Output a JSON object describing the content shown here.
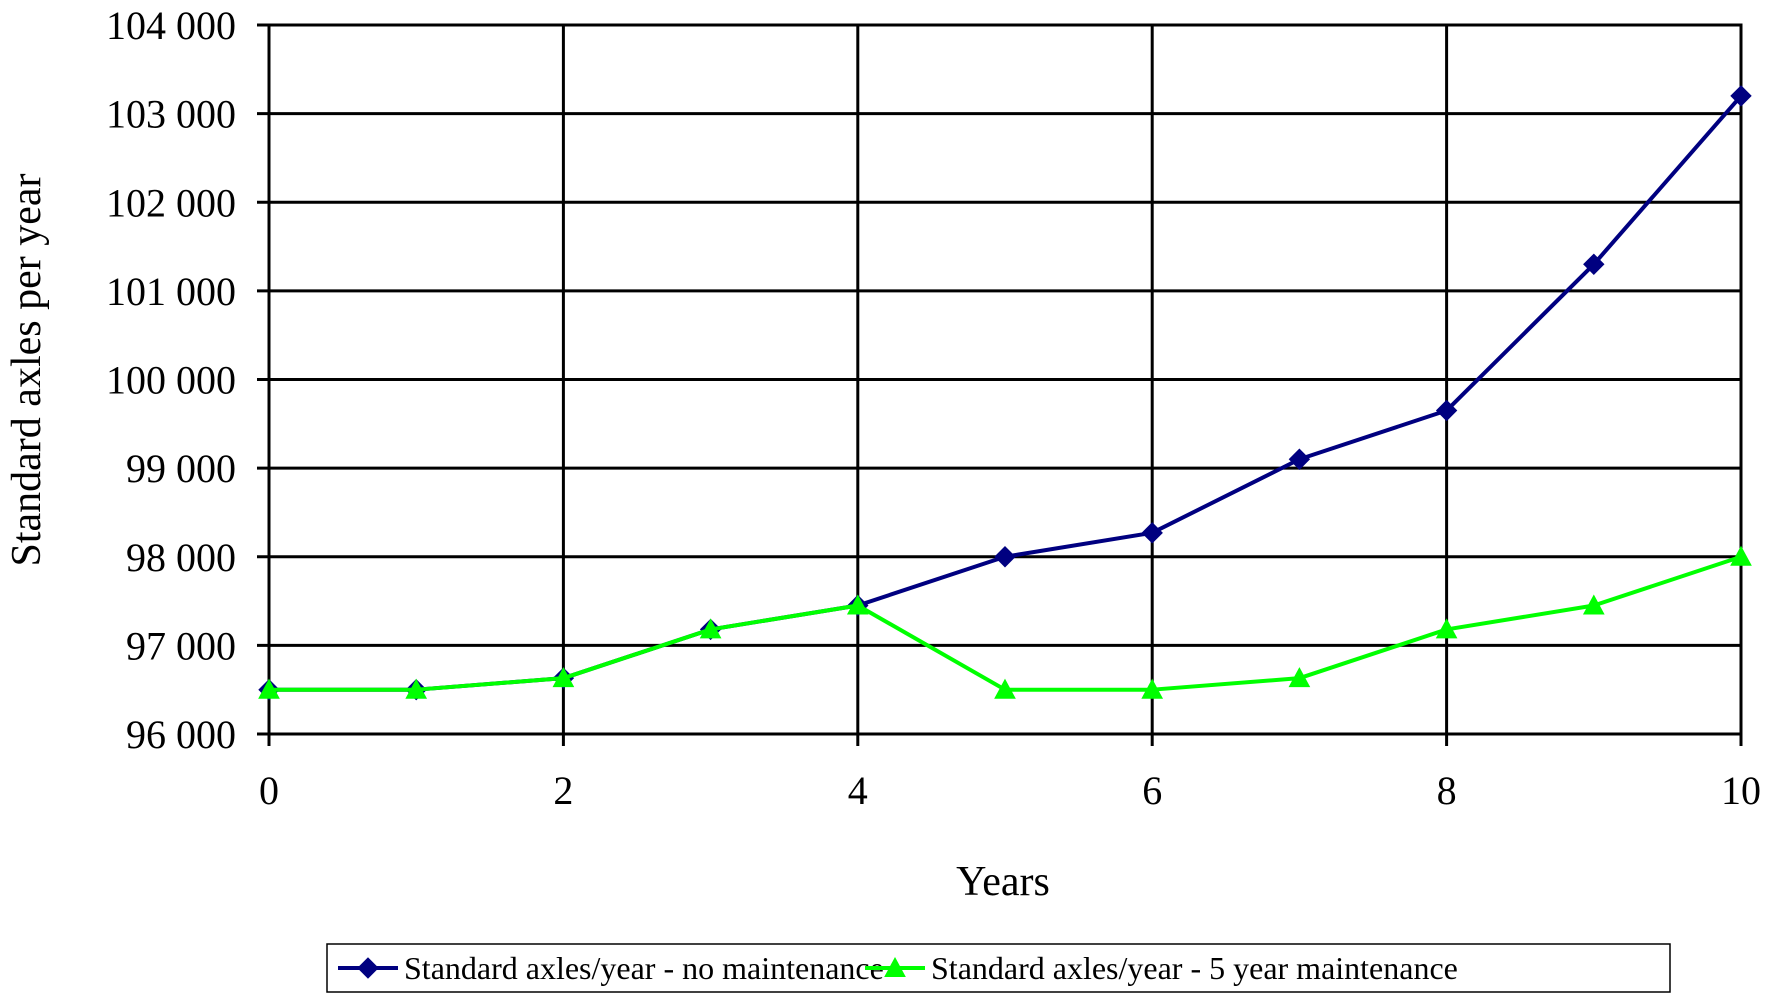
{
  "chart_data": {
    "type": "line",
    "title": "",
    "xlabel": "Years",
    "ylabel": "Standard axles per year",
    "x": [
      0,
      1,
      2,
      3,
      4,
      5,
      6,
      7,
      8,
      9,
      10
    ],
    "xlim": [
      0,
      10
    ],
    "ylim": [
      96000,
      104000
    ],
    "x_ticks": [
      0,
      2,
      4,
      6,
      8,
      10
    ],
    "x_tick_labels": [
      "0",
      "2",
      "4",
      "6",
      "8",
      "10"
    ],
    "y_ticks": [
      96000,
      97000,
      98000,
      99000,
      100000,
      101000,
      102000,
      103000,
      104000
    ],
    "y_tick_labels": [
      "96 000",
      "97 000",
      "98 000",
      "99 000",
      "100 000",
      "101 000",
      "102 000",
      "103 000",
      "104 000"
    ],
    "grid": true,
    "legend_position": "bottom",
    "series": [
      {
        "name": "Standard axles/year - no maintenance",
        "color": "#000080",
        "marker": "diamond",
        "values": [
          96500,
          96500,
          96630,
          97180,
          97450,
          98000,
          98270,
          99100,
          99650,
          101300,
          103200
        ]
      },
      {
        "name": "Standard axles/year - 5 year maintenance",
        "color": "#00ff00",
        "marker": "triangle",
        "values": [
          96500,
          96500,
          96630,
          97180,
          97450,
          96500,
          96500,
          96630,
          97180,
          97450,
          98000
        ]
      }
    ]
  }
}
